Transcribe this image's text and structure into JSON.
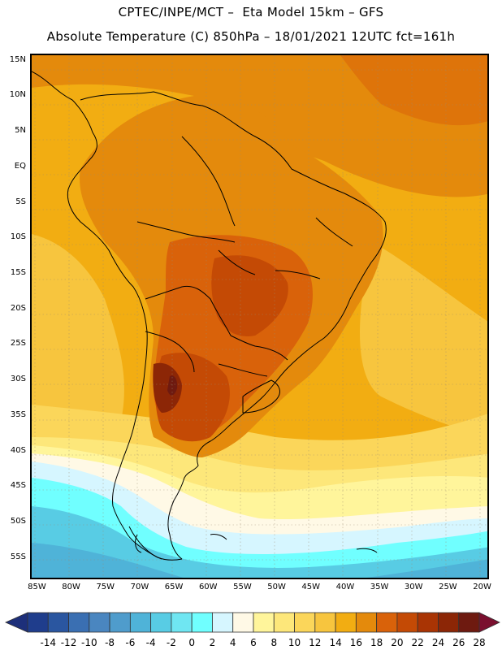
{
  "title_line1": "CPTEC/INPE/MCT –  Eta Model 15km – GFS",
  "title_line2": "Absolute Temperature (C) 850hPa – 18/01/2021 12UTC fct=161h",
  "map": {
    "projection": "lat-lon",
    "lon_range": [
      -86,
      -19
    ],
    "lat_range": [
      -58,
      16
    ],
    "lat_ticks": [
      {
        "value": 15,
        "label": "15N"
      },
      {
        "value": 10,
        "label": "10N"
      },
      {
        "value": 5,
        "label": "5N"
      },
      {
        "value": 0,
        "label": "EQ"
      },
      {
        "value": -5,
        "label": "5S"
      },
      {
        "value": -10,
        "label": "10S"
      },
      {
        "value": -15,
        "label": "15S"
      },
      {
        "value": -20,
        "label": "20S"
      },
      {
        "value": -25,
        "label": "25S"
      },
      {
        "value": -30,
        "label": "30S"
      },
      {
        "value": -35,
        "label": "35S"
      },
      {
        "value": -40,
        "label": "40S"
      },
      {
        "value": -45,
        "label": "45S"
      },
      {
        "value": -50,
        "label": "50S"
      },
      {
        "value": -55,
        "label": "55S"
      }
    ],
    "lon_ticks": [
      {
        "value": -85,
        "label": "85W"
      },
      {
        "value": -80,
        "label": "80W"
      },
      {
        "value": -75,
        "label": "75W"
      },
      {
        "value": -70,
        "label": "70W"
      },
      {
        "value": -65,
        "label": "65W"
      },
      {
        "value": -60,
        "label": "60W"
      },
      {
        "value": -55,
        "label": "55W"
      },
      {
        "value": -50,
        "label": "50W"
      },
      {
        "value": -45,
        "label": "45W"
      },
      {
        "value": -40,
        "label": "40W"
      },
      {
        "value": -35,
        "label": "35W"
      },
      {
        "value": -30,
        "label": "30W"
      },
      {
        "value": -25,
        "label": "25W"
      },
      {
        "value": -20,
        "label": "20W"
      }
    ]
  },
  "colorbar": {
    "labels": [
      "-14",
      "-12",
      "-10",
      "-8",
      "-6",
      "-4",
      "-2",
      "0",
      "2",
      "4",
      "6",
      "8",
      "10",
      "12",
      "14",
      "16",
      "18",
      "20",
      "22",
      "24",
      "26",
      "28"
    ],
    "colors": [
      "#1f3d8c",
      "#2a56a0",
      "#3a6fb2",
      "#4a86c0",
      "#4f9ccc",
      "#4fb3d8",
      "#58cce4",
      "#6fe6f2",
      "#70ffff",
      "#d6f6ff",
      "#fff9e6",
      "#fff59b",
      "#fde77a",
      "#fbd65a",
      "#f7c53e",
      "#f2ad12",
      "#e48a0c",
      "#d9620a",
      "#c44a05",
      "#a93404",
      "#8c2606",
      "#6e1a10"
    ],
    "low_color": "#1d2f7a",
    "high_color": "#7a0f2e"
  }
}
